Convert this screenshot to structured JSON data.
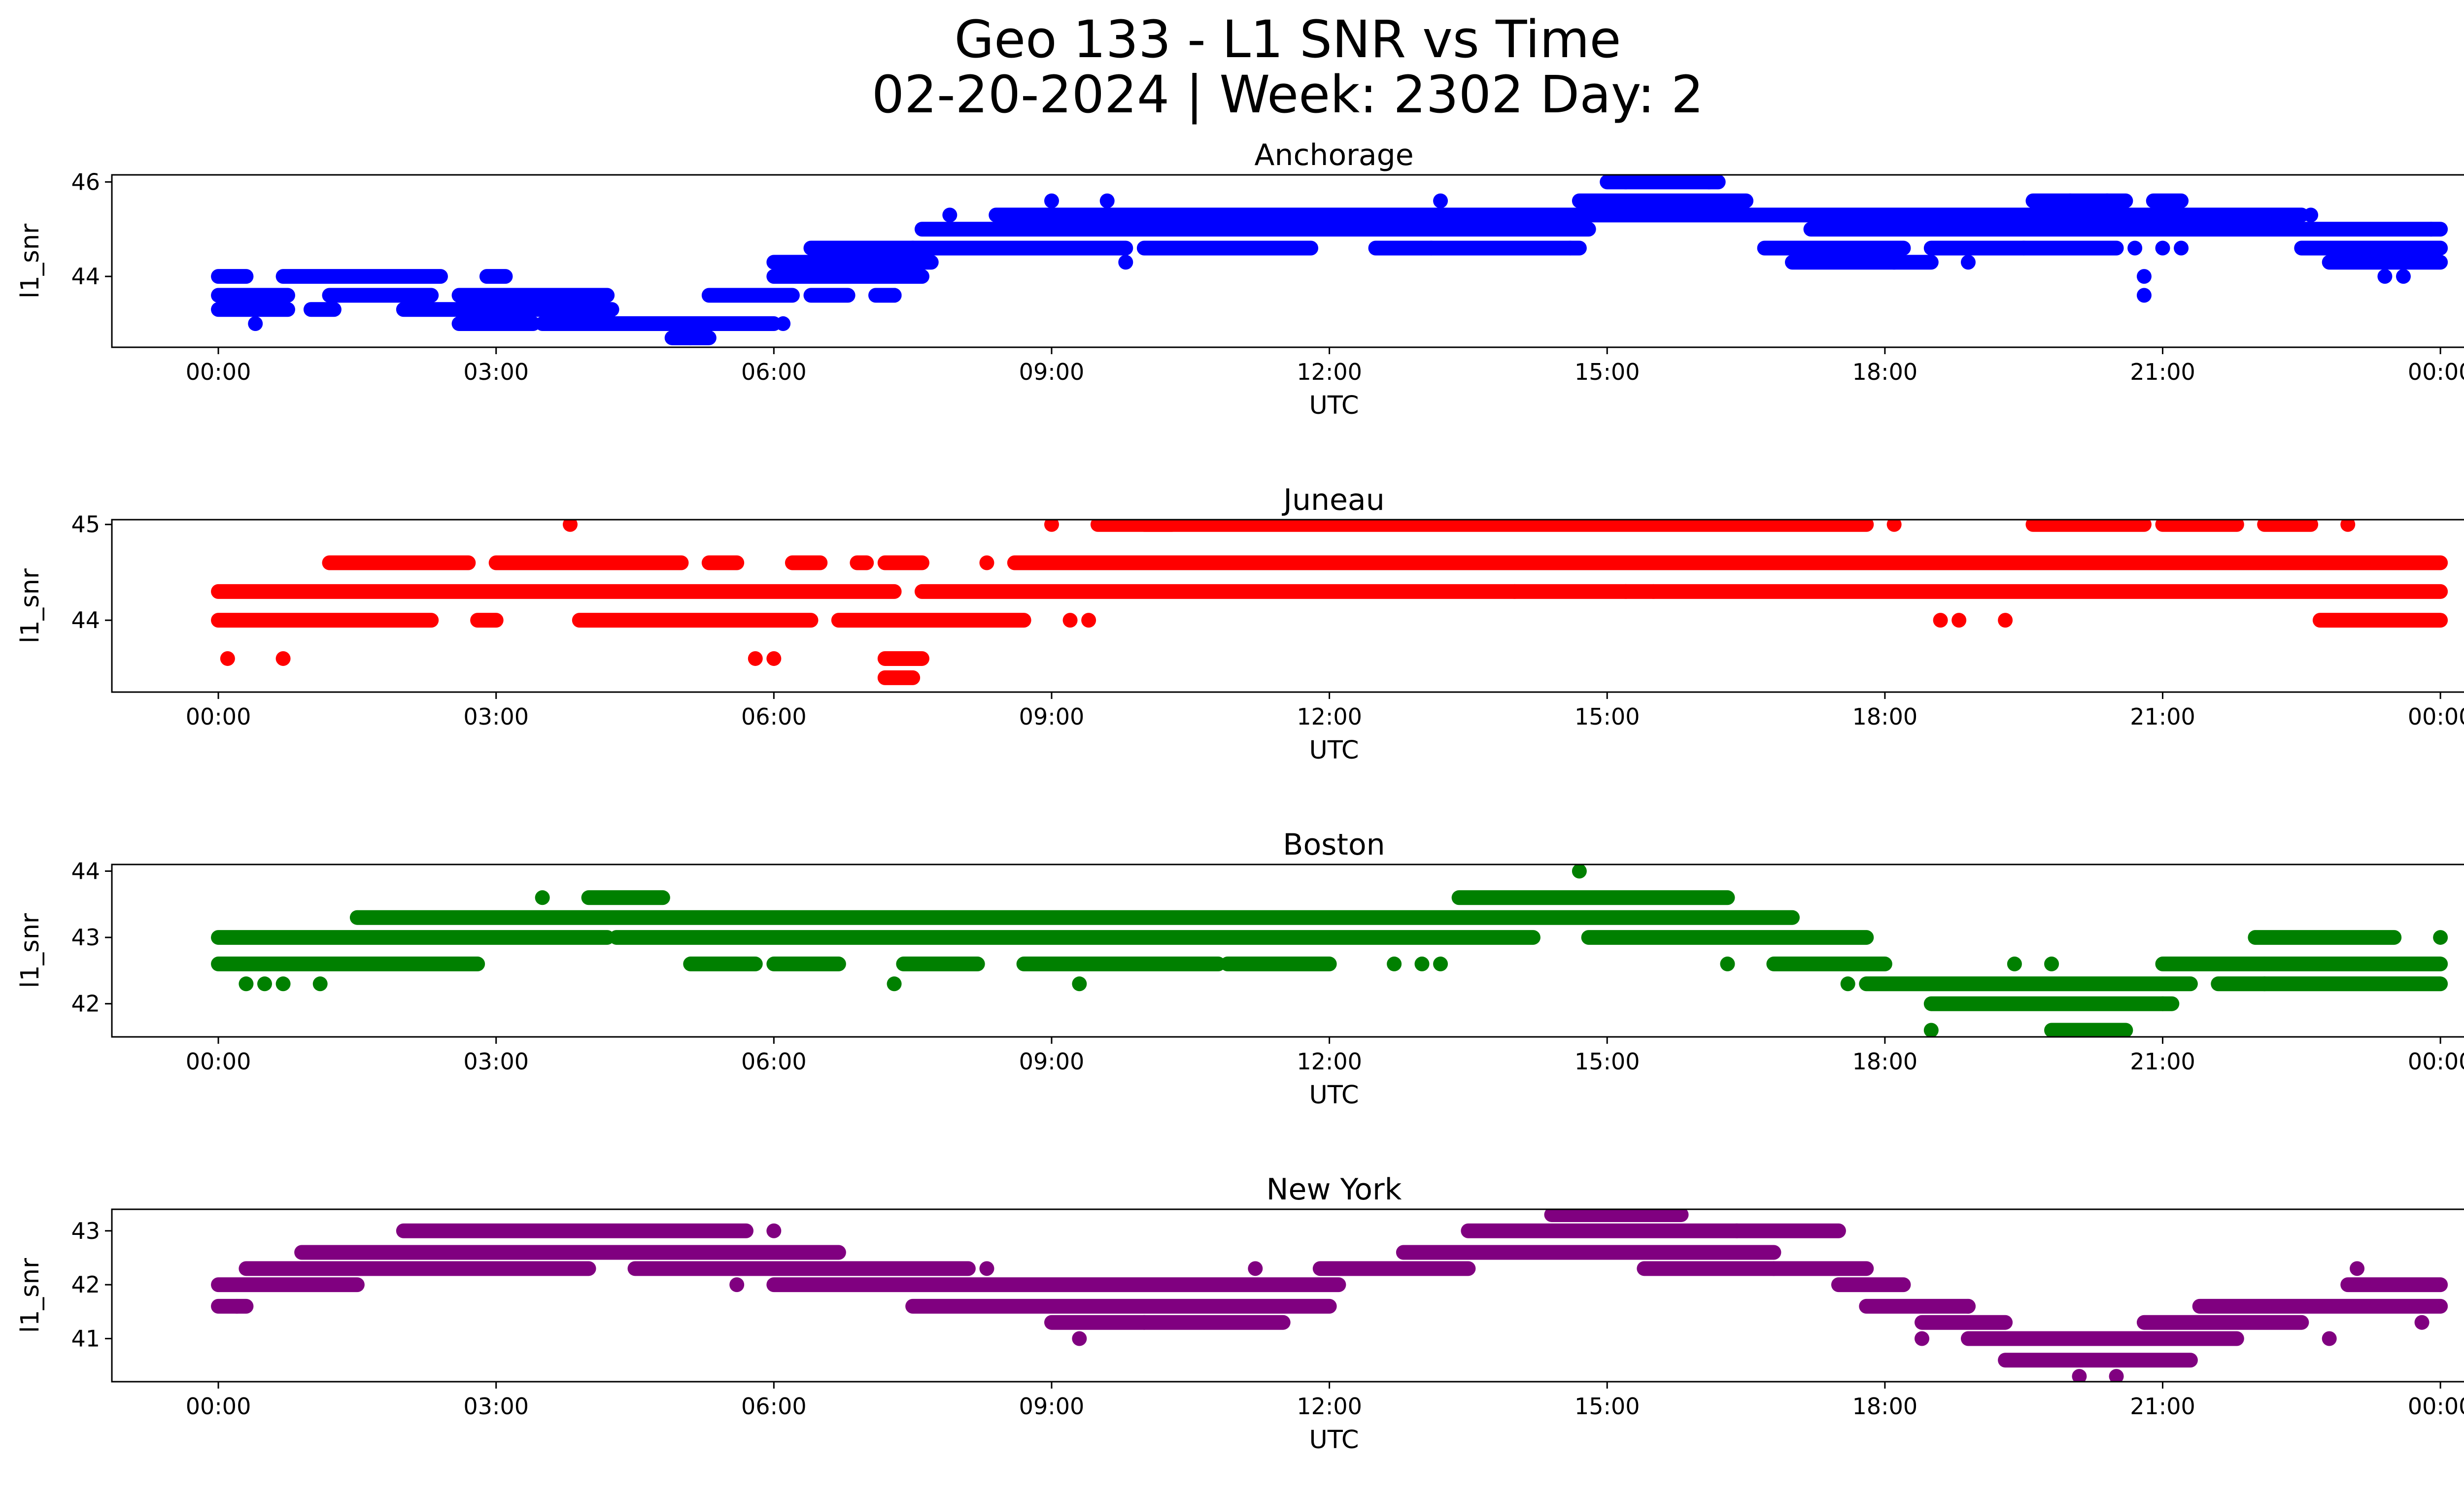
{
  "figure": {
    "title_line1": "Geo 133 - L1 SNR vs Time",
    "title_line2": "02-20-2024 | Week: 2302 Day: 2"
  },
  "chart_data": [
    {
      "type": "scatter",
      "title": "Anchorage",
      "xlabel": "UTC",
      "ylabel": "l1_snr",
      "color": "#0000ff",
      "x_ticks": [
        "00:00",
        "03:00",
        "06:00",
        "09:00",
        "12:00",
        "15:00",
        "18:00",
        "21:00",
        "00:00"
      ],
      "y_ticks": [
        44,
        46
      ],
      "xlim": [
        -1.15,
        25.25
      ],
      "ylim": [
        42.5,
        46.15
      ],
      "levels": [
        [
          43.3,
          0.0,
          0.75
        ],
        [
          43.3,
          1.0,
          1.25
        ],
        [
          43.3,
          2.0,
          4.25
        ],
        [
          43.0,
          2.6,
          3.4
        ],
        [
          43.0,
          3.5,
          6.0
        ],
        [
          42.7,
          4.9,
          5.3
        ],
        [
          43.6,
          0.0,
          0.75
        ],
        [
          43.6,
          1.2,
          2.3
        ],
        [
          43.6,
          2.6,
          4.2
        ],
        [
          43.6,
          5.3,
          6.2
        ],
        [
          44.0,
          0.0,
          0.3
        ],
        [
          44.0,
          0.7,
          2.4
        ],
        [
          44.0,
          2.9,
          3.1
        ],
        [
          44.0,
          6.0,
          7.6
        ],
        [
          43.6,
          6.4,
          6.8
        ],
        [
          43.6,
          7.1,
          7.3
        ],
        [
          44.3,
          6.0,
          7.7
        ],
        [
          44.6,
          6.4,
          7.5
        ],
        [
          44.6,
          7.5,
          9.8
        ],
        [
          44.6,
          10.0,
          11.8
        ],
        [
          44.6,
          12.5,
          14.7
        ],
        [
          44.6,
          16.7,
          18.2
        ],
        [
          44.6,
          18.5,
          19.5
        ],
        [
          44.6,
          19.5,
          20.5
        ],
        [
          44.6,
          22.5,
          24.0
        ],
        [
          44.3,
          17.0,
          18.5
        ],
        [
          44.3,
          22.8,
          24.0
        ],
        [
          45.0,
          7.6,
          14.8
        ],
        [
          45.0,
          17.2,
          24.0
        ],
        [
          45.3,
          8.4,
          22.5
        ],
        [
          45.6,
          14.7,
          16.5
        ],
        [
          45.6,
          19.6,
          20.6
        ],
        [
          45.6,
          20.9,
          21.2
        ],
        [
          46.0,
          15.0,
          16.2
        ]
      ],
      "points": [
        [
          0.4,
          43.0
        ],
        [
          3.3,
          43.0
        ],
        [
          4.4,
          43.0
        ],
        [
          6.1,
          43.0
        ],
        [
          5.5,
          43.0
        ],
        [
          5.1,
          42.7
        ],
        [
          7.3,
          43.6
        ],
        [
          7.9,
          45.3
        ],
        [
          9.0,
          45.6
        ],
        [
          9.6,
          45.6
        ],
        [
          9.8,
          44.3
        ],
        [
          13.2,
          45.6
        ],
        [
          13.1,
          44.6
        ],
        [
          14.6,
          44.6
        ],
        [
          18.1,
          44.3
        ],
        [
          18.9,
          44.3
        ],
        [
          19.1,
          45.3
        ],
        [
          20.0,
          45.6
        ],
        [
          20.4,
          45.6
        ],
        [
          20.7,
          44.6
        ],
        [
          21.0,
          44.6
        ],
        [
          21.2,
          44.6
        ],
        [
          20.8,
          44.0
        ],
        [
          20.8,
          43.6
        ],
        [
          22.6,
          45.3
        ],
        [
          23.4,
          44.0
        ],
        [
          23.6,
          44.0
        ],
        [
          23.9,
          45.0
        ],
        [
          15.2,
          46.0
        ],
        [
          16.1,
          46.0
        ]
      ]
    },
    {
      "type": "scatter",
      "title": "Juneau",
      "xlabel": "UTC",
      "ylabel": "l1_snr",
      "color": "#ff0000",
      "x_ticks": [
        "00:00",
        "03:00",
        "06:00",
        "09:00",
        "12:00",
        "15:00",
        "18:00",
        "21:00",
        "00:00"
      ],
      "y_ticks": [
        44,
        45
      ],
      "xlim": [
        -1.15,
        25.25
      ],
      "ylim": [
        43.25,
        45.05
      ],
      "levels": [
        [
          44.3,
          0.0,
          7.3
        ],
        [
          44.3,
          7.6,
          24.0
        ],
        [
          44.0,
          0.0,
          2.3
        ],
        [
          44.0,
          2.8,
          3.0
        ],
        [
          44.0,
          3.9,
          6.4
        ],
        [
          44.0,
          6.7,
          8.7
        ],
        [
          44.0,
          22.7,
          24.0
        ],
        [
          44.6,
          1.2,
          2.7
        ],
        [
          44.6,
          3.0,
          5.0
        ],
        [
          44.6,
          5.3,
          5.6
        ],
        [
          44.6,
          6.2,
          6.5
        ],
        [
          44.6,
          6.9,
          7.0
        ],
        [
          44.6,
          7.2,
          7.6
        ],
        [
          44.6,
          8.6,
          24.0
        ],
        [
          45.0,
          9.5,
          10.3
        ],
        [
          45.0,
          10.0,
          17.8
        ],
        [
          45.0,
          19.6,
          20.8
        ],
        [
          45.0,
          21.0,
          21.8
        ],
        [
          45.0,
          22.1,
          22.6
        ],
        [
          43.6,
          7.2,
          7.6
        ],
        [
          43.4,
          7.2,
          7.5
        ]
      ],
      "points": [
        [
          0.1,
          43.6
        ],
        [
          0.7,
          43.6
        ],
        [
          3.8,
          45.0
        ],
        [
          5.8,
          43.6
        ],
        [
          6.0,
          43.6
        ],
        [
          8.3,
          44.6
        ],
        [
          9.0,
          45.0
        ],
        [
          9.2,
          44.0
        ],
        [
          9.4,
          44.0
        ],
        [
          14.0,
          44.3
        ],
        [
          15.2,
          44.3
        ],
        [
          15.5,
          44.3
        ],
        [
          18.1,
          45.0
        ],
        [
          18.6,
          44.0
        ],
        [
          18.8,
          44.0
        ],
        [
          19.3,
          44.0
        ],
        [
          23.0,
          45.0
        ],
        [
          23.8,
          44.6
        ]
      ]
    },
    {
      "type": "scatter",
      "title": "Boston",
      "xlabel": "UTC",
      "ylabel": "l1_snr",
      "color": "#008000",
      "x_ticks": [
        "00:00",
        "03:00",
        "06:00",
        "09:00",
        "12:00",
        "15:00",
        "18:00",
        "21:00",
        "00:00"
      ],
      "y_ticks": [
        42,
        43,
        44
      ],
      "xlim": [
        -1.15,
        25.25
      ],
      "ylim": [
        41.5,
        44.1
      ],
      "levels": [
        [
          43.0,
          0.0,
          4.2
        ],
        [
          43.0,
          4.3,
          14.2
        ],
        [
          43.0,
          14.8,
          17.8
        ],
        [
          42.6,
          0.0,
          2.8
        ],
        [
          42.6,
          5.1,
          5.8
        ],
        [
          42.6,
          6.0,
          6.7
        ],
        [
          42.6,
          7.4,
          8.2
        ],
        [
          42.6,
          8.7,
          10.8
        ],
        [
          42.6,
          10.9,
          12.0
        ],
        [
          42.6,
          16.8,
          18.0
        ],
        [
          42.6,
          21.0,
          24.0
        ],
        [
          43.3,
          1.5,
          17.0
        ],
        [
          43.6,
          13.4,
          16.3
        ],
        [
          43.6,
          4.0,
          4.8
        ],
        [
          42.3,
          17.8,
          21.3
        ],
        [
          42.3,
          21.6,
          24.0
        ],
        [
          42.0,
          18.5,
          21.1
        ],
        [
          41.6,
          19.8,
          20.6
        ],
        [
          43.0,
          22.0,
          23.5
        ]
      ],
      "points": [
        [
          0.3,
          42.3
        ],
        [
          0.5,
          42.3
        ],
        [
          0.7,
          42.3
        ],
        [
          1.1,
          42.3
        ],
        [
          3.5,
          43.6
        ],
        [
          7.3,
          42.3
        ],
        [
          9.3,
          42.3
        ],
        [
          12.7,
          42.6
        ],
        [
          13.0,
          42.6
        ],
        [
          13.2,
          42.6
        ],
        [
          14.7,
          44.0
        ],
        [
          16.3,
          42.6
        ],
        [
          17.6,
          42.3
        ],
        [
          18.5,
          41.6
        ],
        [
          19.4,
          42.6
        ],
        [
          19.8,
          42.6
        ],
        [
          21.0,
          42.0
        ],
        [
          22.1,
          42.3
        ],
        [
          24.0,
          43.0
        ]
      ]
    },
    {
      "type": "scatter",
      "title": "New York",
      "xlabel": "UTC",
      "ylabel": "l1_snr",
      "color": "#800080",
      "x_ticks": [
        "00:00",
        "03:00",
        "06:00",
        "09:00",
        "12:00",
        "15:00",
        "18:00",
        "21:00",
        "00:00"
      ],
      "y_ticks": [
        41,
        42,
        43
      ],
      "xlim": [
        -1.15,
        25.25
      ],
      "ylim": [
        40.2,
        43.4
      ],
      "levels": [
        [
          42.0,
          0.0,
          1.5
        ],
        [
          41.6,
          0.0,
          0.3
        ],
        [
          42.3,
          0.3,
          4.0
        ],
        [
          42.6,
          0.9,
          6.7
        ],
        [
          43.0,
          2.0,
          5.7
        ],
        [
          42.3,
          4.5,
          8.1
        ],
        [
          42.0,
          6.0,
          12.1
        ],
        [
          41.6,
          7.5,
          12.0
        ],
        [
          41.3,
          9.0,
          11.5
        ],
        [
          42.3,
          11.9,
          13.5
        ],
        [
          42.6,
          12.8,
          16.8
        ],
        [
          43.0,
          13.5,
          17.5
        ],
        [
          43.3,
          14.4,
          15.8
        ],
        [
          42.3,
          15.4,
          17.8
        ],
        [
          42.0,
          17.5,
          18.2
        ],
        [
          41.6,
          17.8,
          18.9
        ],
        [
          41.3,
          18.4,
          19.3
        ],
        [
          41.0,
          18.9,
          20.5
        ],
        [
          40.6,
          19.3,
          21.3
        ],
        [
          41.0,
          20.5,
          21.8
        ],
        [
          41.3,
          20.8,
          22.5
        ],
        [
          41.6,
          21.4,
          24.0
        ],
        [
          42.0,
          23.0,
          24.0
        ]
      ],
      "points": [
        [
          0.2,
          41.6
        ],
        [
          5.6,
          42.0
        ],
        [
          6.0,
          43.0
        ],
        [
          8.3,
          42.3
        ],
        [
          9.3,
          41.0
        ],
        [
          10.0,
          41.3
        ],
        [
          11.2,
          42.3
        ],
        [
          15.4,
          42.6
        ],
        [
          16.4,
          43.0
        ],
        [
          16.8,
          42.3
        ],
        [
          18.4,
          41.0
        ],
        [
          18.9,
          41.6
        ],
        [
          20.1,
          40.3
        ],
        [
          20.5,
          40.3
        ],
        [
          22.8,
          41.0
        ],
        [
          23.1,
          42.3
        ],
        [
          23.8,
          41.3
        ]
      ]
    }
  ]
}
